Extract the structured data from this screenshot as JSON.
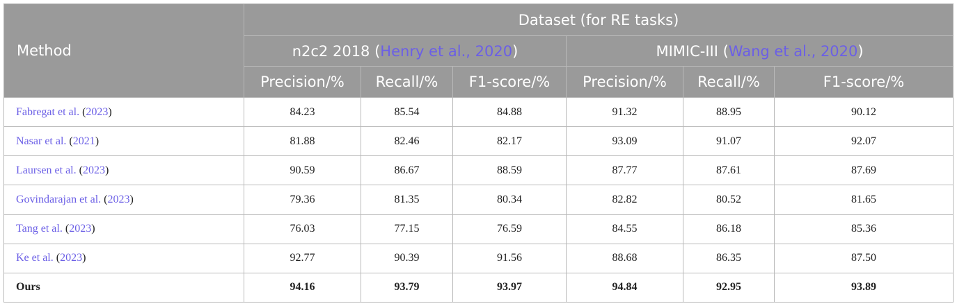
{
  "header": {
    "method_label": "Method",
    "dataset_label": "Dataset (for RE tasks)",
    "datasets": [
      {
        "name": "n2c2 2018 (",
        "citation": "Henry et al., 2020",
        "close": ")"
      },
      {
        "name": "MIMIC-III (",
        "citation": "Wang et al., 2020",
        "close": ")"
      }
    ],
    "metrics": [
      "Precision/%",
      "Recall/%",
      "F1-score/%",
      "Precision/%",
      "Recall/%",
      "F1-score/%"
    ]
  },
  "rows": [
    {
      "author": "Fabregat et al.",
      "open": " (",
      "year": "2023",
      "close": ")",
      "values": [
        "84.23",
        "85.54",
        "84.88",
        "91.32",
        "88.95",
        "90.12"
      ]
    },
    {
      "author": "Nasar et al.",
      "open": " (",
      "year": "2021",
      "close": ")",
      "values": [
        "81.88",
        "82.46",
        "82.17",
        "93.09",
        "91.07",
        "92.07"
      ]
    },
    {
      "author": "Laursen et al.",
      "open": " (",
      "year": "2023",
      "close": ")",
      "values": [
        "90.59",
        "86.67",
        "88.59",
        "87.77",
        "87.61",
        "87.69"
      ]
    },
    {
      "author": "Govindarajan et al.",
      "open": " (",
      "year": "2023",
      "close": ")",
      "values": [
        "79.36",
        "81.35",
        "80.34",
        "82.82",
        "80.52",
        "81.65"
      ]
    },
    {
      "author": "Tang et al.",
      "open": " (",
      "year": "2023",
      "close": ")",
      "values": [
        "76.03",
        "77.15",
        "76.59",
        "84.55",
        "86.18",
        "85.36"
      ]
    },
    {
      "author": "Ke et al.",
      "open": " (",
      "year": "2023",
      "close": ")",
      "values": [
        "92.77",
        "90.39",
        "91.56",
        "88.68",
        "86.35",
        "87.50"
      ]
    }
  ],
  "ours": {
    "label": "Ours",
    "values": [
      "94.16",
      "93.79",
      "93.97",
      "94.84",
      "92.95",
      "93.89"
    ]
  }
}
